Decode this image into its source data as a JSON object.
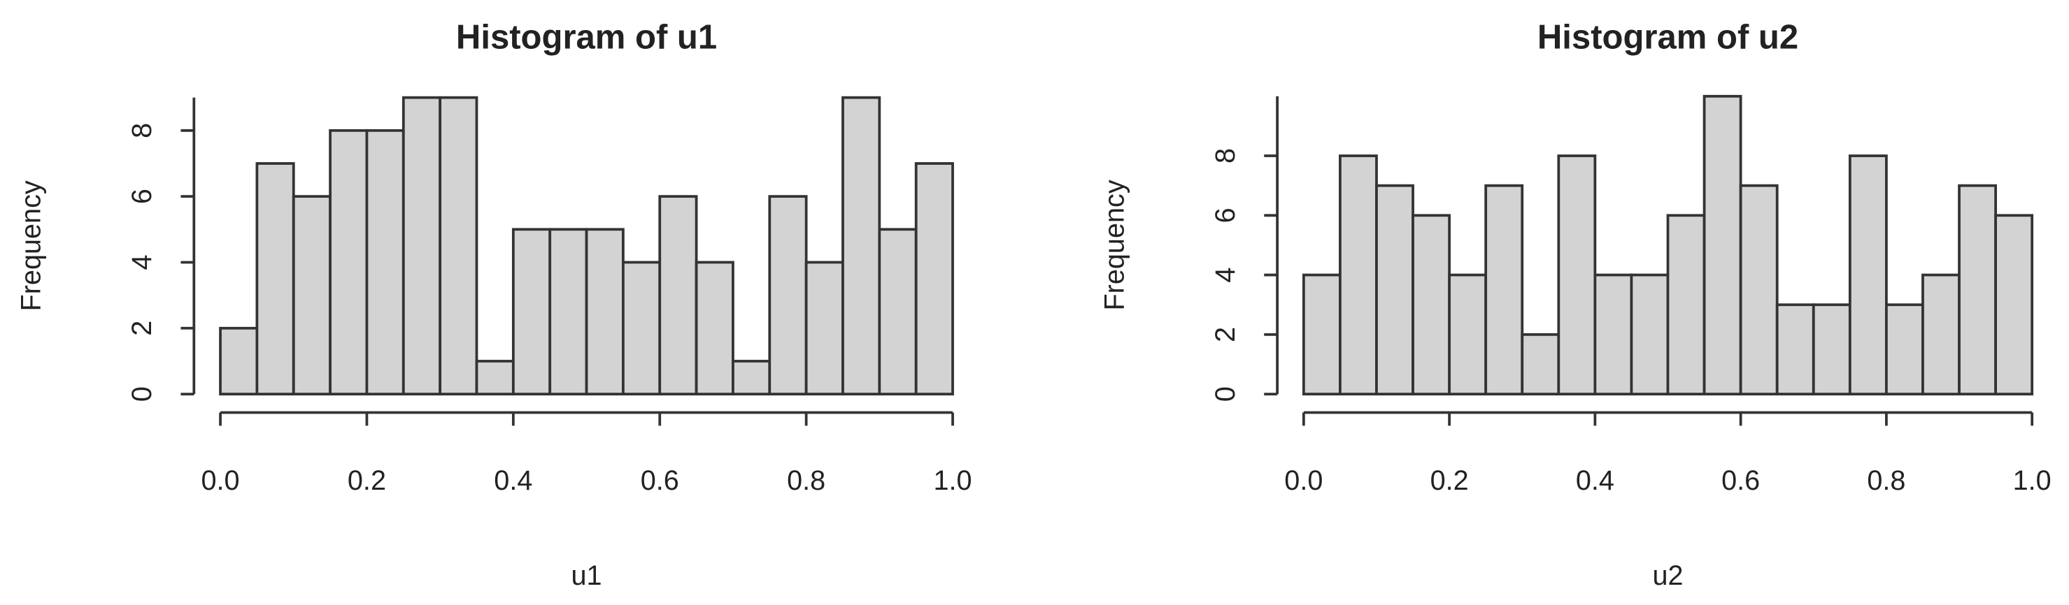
{
  "chart_data": [
    {
      "type": "histogram",
      "title": "Histogram of u1",
      "x_label": "u1",
      "y_label": "Frequency",
      "bins": [
        0,
        0.05,
        0.1,
        0.15,
        0.2,
        0.25,
        0.3,
        0.35,
        0.4,
        0.45,
        0.5,
        0.55,
        0.6,
        0.65,
        0.7,
        0.75,
        0.8,
        0.85,
        0.9,
        0.95,
        1
      ],
      "values": [
        2,
        7,
        6,
        8,
        8,
        9,
        9,
        1,
        5,
        5,
        5,
        4,
        6,
        4,
        1,
        6,
        4,
        9,
        5,
        7
      ],
      "color": "#d3d3d3",
      "xlim": [
        0,
        1
      ],
      "xticks": [
        {
          "value": 0,
          "label": "0.0"
        },
        {
          "value": 0.2,
          "label": "0.2"
        },
        {
          "value": 0.4,
          "label": "0.4"
        },
        {
          "value": 0.6,
          "label": "0.6"
        },
        {
          "value": 0.8,
          "label": "0.8"
        },
        {
          "value": 1,
          "label": "1.0"
        }
      ],
      "ylim": [
        0,
        9
      ],
      "yticks": [
        0,
        2,
        4,
        6,
        8
      ]
    },
    {
      "type": "histogram",
      "title": "Histogram of u2",
      "x_label": "u2",
      "y_label": "Frequency",
      "bins": [
        0,
        0.05,
        0.1,
        0.15,
        0.2,
        0.25,
        0.3,
        0.35,
        0.4,
        0.45,
        0.5,
        0.55,
        0.6,
        0.65,
        0.7,
        0.75,
        0.8,
        0.85,
        0.9,
        0.95,
        1
      ],
      "values": [
        4,
        8,
        7,
        6,
        4,
        7,
        2,
        8,
        4,
        4,
        6,
        10,
        7,
        3,
        3,
        8,
        3,
        4,
        7,
        6
      ],
      "color": "#d3d3d3",
      "xlim": [
        0,
        1
      ],
      "xticks": [
        {
          "value": 0,
          "label": "0.0"
        },
        {
          "value": 0.2,
          "label": "0.2"
        },
        {
          "value": 0.4,
          "label": "0.4"
        },
        {
          "value": 0.6,
          "label": "0.6"
        },
        {
          "value": 0.8,
          "label": "0.8"
        },
        {
          "value": 1,
          "label": "1.0"
        }
      ],
      "ylim": [
        0,
        10
      ],
      "yticks": [
        0,
        2,
        4,
        6,
        8
      ]
    }
  ]
}
